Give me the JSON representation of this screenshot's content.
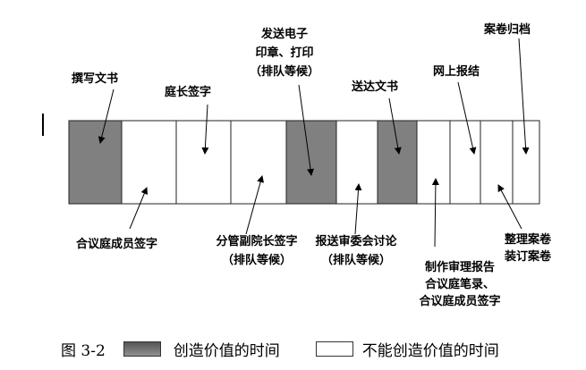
{
  "diagram": {
    "colors": {
      "value_creating": "#808080",
      "non_value": "#ffffff"
    },
    "segments": [
      "value",
      "non",
      "non",
      "non",
      "value",
      "non",
      "value",
      "non",
      "non",
      "non",
      "non"
    ],
    "labels_top": [
      {
        "lines": [
          "撰写文书"
        ]
      },
      {
        "lines": [
          "庭长签字"
        ]
      },
      {
        "lines": [
          "发送电子",
          "印章、打印",
          "（排队等候）"
        ]
      },
      {
        "lines": [
          "送达文书"
        ]
      },
      {
        "lines": [
          "网上报结"
        ]
      },
      {
        "lines": [
          "案卷归档"
        ]
      }
    ],
    "labels_bottom": [
      {
        "lines": [
          "合议庭成员签字"
        ]
      },
      {
        "lines": [
          "分管副院长签字",
          "（排队等候）"
        ]
      },
      {
        "lines": [
          "报送审委会讨论",
          "（排队等候）"
        ]
      },
      {
        "lines": [
          "制作审理报告",
          "合议庭笔录、",
          "合议庭成员签字"
        ]
      },
      {
        "lines": [
          "整理案卷",
          "装订案卷"
        ]
      }
    ]
  },
  "legend": {
    "figure_label": "图 3-2",
    "value_label": "创造价值的时间",
    "non_value_label": "不能创造价值的时间"
  }
}
